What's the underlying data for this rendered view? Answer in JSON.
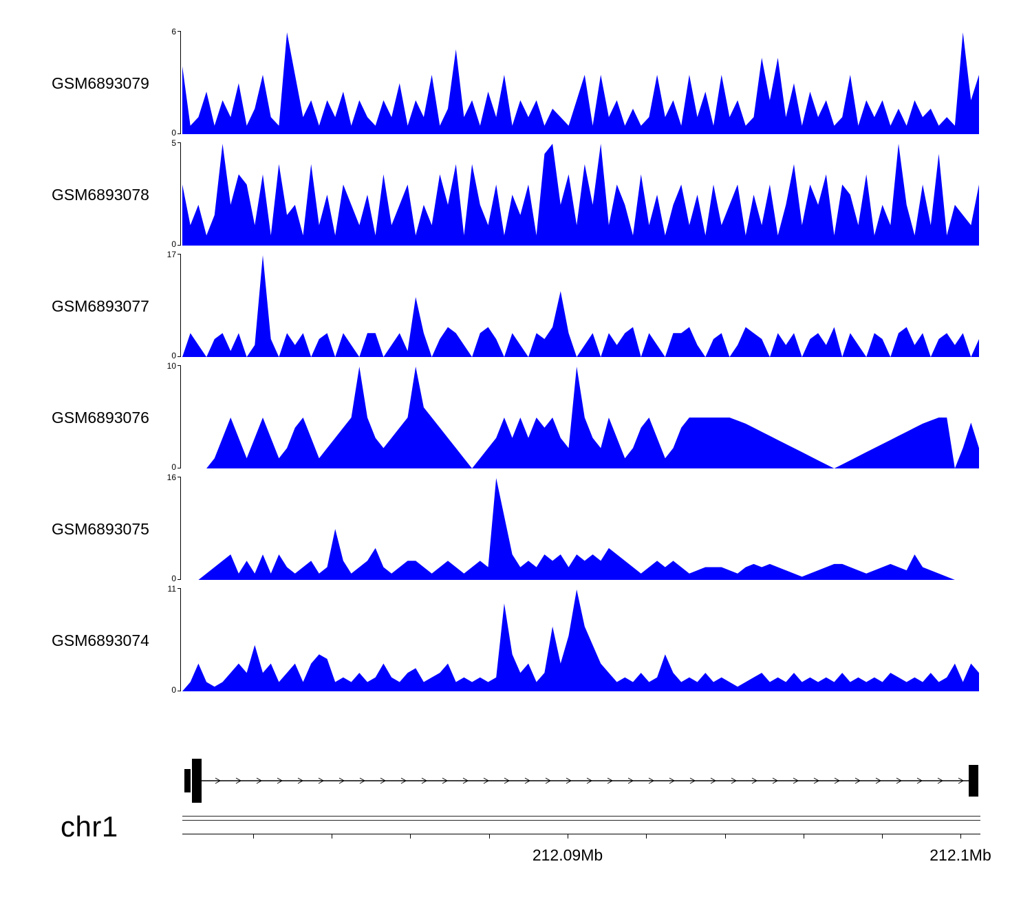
{
  "colors": {
    "coverage_fill": "#0000FF",
    "axis": "#000000",
    "background": "#FFFFFF"
  },
  "chart_data": {
    "type": "area",
    "title": "",
    "description": "Genome browser read-coverage tracks for six GEO samples over chr1 ~212.080-212.100 Mb, with gene model and genome axis below",
    "x_range_mb": [
      212.0802,
      212.1005
    ],
    "grid": false,
    "legend": "none",
    "tracks": [
      {
        "name": "GSM6893079",
        "ymin": 0,
        "ymax": 6,
        "fill_color": "#0000FF",
        "values": [
          4,
          0.5,
          1,
          2.5,
          0.5,
          2,
          1,
          3,
          0.5,
          1.5,
          3.5,
          1,
          0.5,
          6,
          3.5,
          1,
          2,
          0.5,
          2,
          1,
          2.5,
          0.5,
          2,
          1,
          0.5,
          2,
          1,
          3,
          0.5,
          2,
          1,
          3.5,
          0.5,
          1.5,
          5,
          1,
          2,
          0.5,
          2.5,
          1,
          3.5,
          0.5,
          2,
          1,
          2,
          0.5,
          1.5,
          1,
          0.5,
          2,
          3.5,
          0.5,
          3.5,
          1,
          2,
          0.5,
          1.5,
          0.5,
          1,
          3.5,
          1,
          2,
          0.5,
          3.5,
          1,
          2.5,
          0.5,
          3.5,
          1,
          2,
          0.5,
          1,
          4.5,
          2,
          4.5,
          1,
          3,
          0.5,
          2.5,
          1,
          2,
          0.5,
          1,
          3.5,
          0.5,
          2,
          1,
          2,
          0.5,
          1.5,
          0.5,
          2,
          1,
          1.5,
          0.5,
          1,
          0.5,
          6,
          2,
          3.5
        ]
      },
      {
        "name": "GSM6893078",
        "ymin": 0,
        "ymax": 5,
        "fill_color": "#0000FF",
        "values": [
          3,
          1,
          2,
          0.5,
          1.5,
          5,
          2,
          3.5,
          3,
          1,
          3.5,
          0.5,
          4,
          1.5,
          2,
          0.5,
          4,
          1,
          2.5,
          0.5,
          3,
          2,
          1,
          2.5,
          0.5,
          3.5,
          1,
          2,
          3,
          0.5,
          2,
          1,
          3.5,
          2,
          4,
          0.5,
          4,
          2,
          1,
          3,
          0.5,
          2.5,
          1.5,
          3,
          0.5,
          4.5,
          5,
          2,
          3.5,
          1,
          4,
          2,
          5,
          1,
          3,
          2,
          0.5,
          3.5,
          1,
          2.5,
          0.5,
          2,
          3,
          1,
          2.5,
          0.5,
          3,
          1,
          2,
          3,
          0.5,
          2.5,
          1,
          3,
          0.5,
          2,
          4,
          1,
          3,
          2,
          3.5,
          0.5,
          3,
          2.5,
          1,
          3.5,
          0.5,
          2,
          1,
          5,
          2,
          0.5,
          3,
          1,
          4.5,
          0.5,
          2,
          1.5,
          1,
          3
        ]
      },
      {
        "name": "GSM6893077",
        "ymin": 0,
        "ymax": 17,
        "fill_color": "#0000FF",
        "values": [
          0,
          4,
          2,
          0,
          3,
          4,
          1,
          4,
          0,
          2,
          17,
          3,
          0,
          4,
          2,
          4,
          0,
          3,
          4,
          0,
          4,
          2,
          0,
          4,
          4,
          0,
          2,
          4,
          1,
          10,
          4,
          0,
          3,
          5,
          4,
          2,
          0,
          4,
          5,
          3,
          0,
          4,
          2,
          0,
          4,
          3,
          5,
          11,
          4,
          0,
          2,
          4,
          0,
          4,
          2,
          4,
          5,
          0,
          4,
          2,
          0,
          4,
          4,
          5,
          2,
          0,
          3,
          4,
          0,
          2,
          5,
          4,
          3,
          0,
          4,
          2,
          4,
          0,
          3,
          4,
          2,
          5,
          0,
          4,
          2,
          0,
          4,
          3,
          0,
          4,
          5,
          2,
          4,
          0,
          3,
          4,
          2,
          4,
          0,
          3
        ]
      },
      {
        "name": "GSM6893076",
        "ymin": 0,
        "ymax": 10,
        "fill_color": "#0000FF",
        "values": [
          0,
          0,
          0,
          0,
          1,
          3,
          5,
          3,
          1,
          3,
          5,
          3,
          1,
          2,
          4,
          5,
          3,
          1,
          2,
          3,
          4,
          5,
          10,
          5,
          3,
          2,
          3,
          4,
          5,
          10,
          6,
          5,
          4,
          3,
          2,
          1,
          0,
          1,
          2,
          3,
          5,
          3,
          5,
          3,
          5,
          4,
          5,
          3,
          2,
          10,
          5,
          3,
          2,
          5,
          3,
          1,
          2,
          4,
          5,
          3,
          1,
          2,
          4,
          5,
          5,
          5,
          5,
          5,
          5,
          4.7,
          4.4,
          4,
          3.6,
          3.2,
          2.8,
          2.4,
          2,
          1.6,
          1.2,
          0.8,
          0.4,
          0,
          0.4,
          0.8,
          1.2,
          1.6,
          2,
          2.4,
          2.8,
          3.2,
          3.6,
          4,
          4.4,
          4.7,
          5,
          5,
          0,
          2,
          4.5,
          2
        ]
      },
      {
        "name": "GSM6893075",
        "ymin": 0,
        "ymax": 16,
        "fill_color": "#0000FF",
        "values": [
          0,
          0,
          0,
          1,
          2,
          3,
          4,
          1,
          3,
          1,
          4,
          1,
          4,
          2,
          1,
          2,
          3,
          1,
          2,
          8,
          3,
          1,
          2,
          3,
          5,
          2,
          1,
          2,
          3,
          3,
          2,
          1,
          2,
          3,
          2,
          1,
          2,
          3,
          2,
          16,
          10,
          4,
          2,
          3,
          2,
          4,
          3,
          4,
          2,
          4,
          3,
          4,
          3,
          5,
          4,
          3,
          2,
          1,
          2,
          3,
          2,
          3,
          2,
          1,
          1.5,
          2,
          2,
          2,
          1.5,
          1,
          2,
          2.5,
          2,
          2.5,
          2,
          1.5,
          1,
          0.5,
          1,
          1.5,
          2,
          2.5,
          2.5,
          2,
          1.5,
          1,
          1.5,
          2,
          2.5,
          2,
          1.5,
          4,
          2,
          1.5,
          1,
          0.5,
          0,
          0,
          0,
          0
        ]
      },
      {
        "name": "GSM6893074",
        "ymin": 0,
        "ymax": 11,
        "fill_color": "#0000FF",
        "values": [
          0,
          1,
          3,
          1,
          0.5,
          1,
          2,
          3,
          2,
          5,
          2,
          3,
          1,
          2,
          3,
          1,
          3,
          4,
          3.5,
          1,
          1.5,
          1,
          2,
          1,
          1.5,
          3,
          1.5,
          1,
          2,
          2.5,
          1,
          1.5,
          2,
          3,
          1,
          1.5,
          1,
          1.5,
          1,
          1.5,
          9.5,
          4,
          2,
          3,
          1,
          2,
          7,
          3,
          6,
          11,
          7,
          5,
          3,
          2,
          1,
          1.5,
          1,
          2,
          1,
          1.5,
          4,
          2,
          1,
          1.5,
          1,
          2,
          1,
          1.5,
          1,
          0.5,
          1,
          1.5,
          2,
          1,
          1.5,
          1,
          2,
          1,
          1.5,
          1,
          1.5,
          1,
          2,
          1,
          1.5,
          1,
          1.5,
          1,
          2,
          1.5,
          1,
          1.5,
          1,
          2,
          1,
          1.5,
          3,
          1,
          3,
          2
        ]
      },
      {
        "name": "",
        "ymin": 0,
        "ymax": 0,
        "fill_color": "",
        "values": []
      }
    ],
    "gene_model": {
      "chromosome": "chr1",
      "strand": "+",
      "color": "#000000",
      "intron_arrow_direction": "right"
    },
    "axis": {
      "chromosome_label": "chr1",
      "unit": "Mb",
      "tick_interval_mb": 0.002,
      "ticks_mb": [
        212.082,
        212.084,
        212.086,
        212.088,
        212.09,
        212.092,
        212.094,
        212.096,
        212.098,
        212.1
      ],
      "labeled_ticks": [
        {
          "value_mb": 212.09,
          "label": "212.09Mb"
        },
        {
          "value_mb": 212.1,
          "label": "212.1Mb"
        }
      ]
    }
  }
}
